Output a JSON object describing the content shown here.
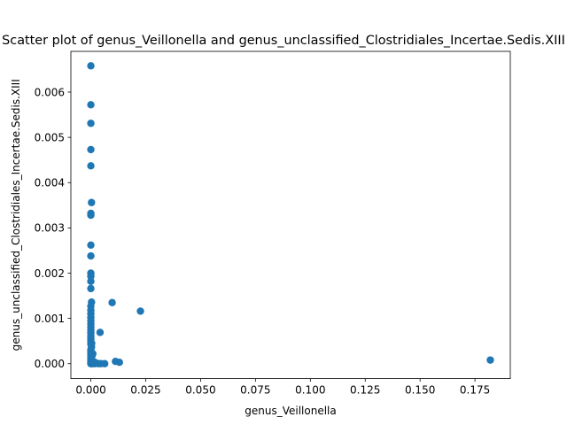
{
  "chart_data": {
    "type": "scatter",
    "title": "Scatter plot of genus_Veillonella and genus_unclassified_Clostridiales_Incertae.Sedis.XIII",
    "xlabel": "genus_Veillonella",
    "ylabel": "genus_unclassified_Clostridiales_Incertae.Sedis.XIII",
    "xlim": [
      -0.0091,
      0.1911
    ],
    "ylim": [
      -0.00033,
      0.0069
    ],
    "xticks": [
      0.0,
      0.025,
      0.05,
      0.075,
      0.1,
      0.125,
      0.15,
      0.175
    ],
    "xtick_labels": [
      "0.000",
      "0.025",
      "0.050",
      "0.075",
      "0.100",
      "0.125",
      "0.150",
      "0.175"
    ],
    "yticks": [
      0.0,
      0.001,
      0.002,
      0.003,
      0.004,
      0.005,
      0.006
    ],
    "ytick_labels": [
      "0.000",
      "0.001",
      "0.002",
      "0.003",
      "0.004",
      "0.005",
      "0.006"
    ],
    "grid": false,
    "legend": "none",
    "marker_color": "#1f77b4",
    "series": [
      {
        "points": [
          [
            0.0,
            0.00658
          ],
          [
            0.0,
            0.00572
          ],
          [
            0.0,
            0.00531
          ],
          [
            0.0,
            0.00473
          ],
          [
            0.0,
            0.00437
          ],
          [
            0.0003,
            0.00356
          ],
          [
            0.0,
            0.00332
          ],
          [
            0.0,
            0.00328
          ],
          [
            0.0,
            0.00262
          ],
          [
            0.0,
            0.00238
          ],
          [
            0.0,
            0.002
          ],
          [
            0.0,
            0.00193
          ],
          [
            0.0,
            0.00182
          ],
          [
            0.0,
            0.00166
          ],
          [
            0.0003,
            0.00136
          ],
          [
            0.0,
            0.00127
          ],
          [
            0.0,
            0.00118
          ],
          [
            0.0,
            0.0011
          ],
          [
            0.0,
            0.00102
          ],
          [
            0.0,
            0.00095
          ],
          [
            0.0,
            0.00088
          ],
          [
            0.0,
            0.00081
          ],
          [
            0.0,
            0.00074
          ],
          [
            0.0,
            0.00068
          ],
          [
            0.0,
            0.00061
          ],
          [
            0.0,
            0.00055
          ],
          [
            0.0,
            0.00049
          ],
          [
            0.0,
            0.00043
          ],
          [
            0.0003,
            0.00037
          ],
          [
            0.0,
            0.00031
          ],
          [
            0.0,
            0.00026
          ],
          [
            0.0,
            0.00021
          ],
          [
            0.0006,
            0.00018
          ],
          [
            0.0,
            0.00015
          ],
          [
            0.0,
            0.0001
          ],
          [
            0.0,
            6e-05
          ],
          [
            0.0,
            3e-05
          ],
          [
            0.0,
            1e-05
          ],
          [
            0.0,
            0.0
          ],
          [
            0.0002,
            0.0
          ],
          [
            0.0008,
            0.0
          ],
          [
            0.0012,
            2e-05
          ],
          [
            0.0018,
            0.0
          ],
          [
            0.0026,
            1e-05
          ],
          [
            0.0035,
            0.0
          ],
          [
            0.0045,
            0.0
          ],
          [
            0.0063,
            0.0
          ],
          [
            0.0004,
            0.00045
          ],
          [
            0.0009,
            0.00022
          ],
          [
            0.0015,
            4e-05
          ],
          [
            0.0042,
            0.00069
          ],
          [
            0.0097,
            0.00135
          ],
          [
            0.0226,
            0.00116
          ],
          [
            0.0112,
            5e-05
          ],
          [
            0.013,
            3e-05
          ],
          [
            0.182,
            8e-05
          ]
        ]
      }
    ]
  }
}
